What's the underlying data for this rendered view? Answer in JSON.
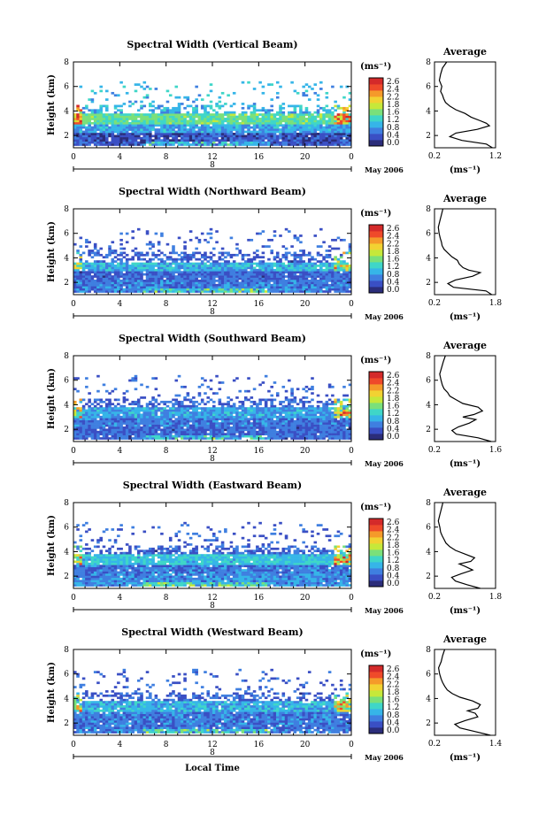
{
  "figure": {
    "xlabel": "Local Time",
    "date_label": "May 2006",
    "colorbar_unit": "(ms⁻¹)",
    "colorbar_ticks": [
      "2.6",
      "2.4",
      "2.2",
      "1.8",
      "1.6",
      "1.2",
      "0.8",
      "0.4",
      "0.0"
    ],
    "profile_title": "Average",
    "profile_xlabel": "(ms⁻¹)",
    "colormap": [
      "#2b2d7a",
      "#3a4fc4",
      "#3f7fe0",
      "#36b5e8",
      "#3fd6c8",
      "#7ae07a",
      "#c6e83a",
      "#f2d232",
      "#f59a2a",
      "#ef4a2a",
      "#d42a2a"
    ]
  },
  "chart_data": [
    {
      "type": "heatmap",
      "title": "Spectral Width (Vertical Beam)",
      "xlabel": "Local Time",
      "ylabel": "Height (km)",
      "x_ticks": [
        "0",
        "4",
        "8",
        "12",
        "16",
        "20",
        "0"
      ],
      "y_ticks": [
        "2",
        "4",
        "6",
        "8"
      ],
      "date_marker": "8",
      "date_label": "May 2006",
      "xlim": [
        0,
        24
      ],
      "ylim": [
        1,
        8
      ],
      "colorbar": {
        "unit": "(ms⁻¹)",
        "ticks": [
          "2.6",
          "2.4",
          "2.2",
          "1.8",
          "1.6",
          "1.2",
          "0.8",
          "0.4",
          "0.0"
        ],
        "range": [
          0,
          2.8
        ]
      },
      "layers": [
        {
          "height_km": [
            1.2,
            2.2
          ],
          "width_ms": 0.4
        },
        {
          "height_km": [
            2.2,
            3.0
          ],
          "width_ms": 0.8
        },
        {
          "height_km": [
            3.0,
            3.8
          ],
          "width_ms": 1.3
        },
        {
          "height_km": [
            3.8,
            6.5
          ],
          "width_ms": 0.9,
          "sparse": true
        }
      ],
      "profile": {
        "title": "Average",
        "xlabel": "(ms⁻¹)",
        "x_ticks": [
          "0.2",
          "1.2"
        ],
        "y_ticks": [
          "2",
          "4",
          "6",
          "8"
        ],
        "xlim": [
          0.2,
          1.2
        ],
        "ylim": [
          1,
          8
        ],
        "height": [
          1.0,
          1.3,
          1.6,
          1.9,
          2.2,
          2.5,
          2.8,
          3.0,
          3.2,
          3.5,
          3.8,
          4.1,
          4.4,
          4.7,
          5.0,
          5.3,
          5.6,
          6.0,
          6.5,
          7.0,
          7.5,
          8.0
        ],
        "width": [
          1.15,
          1.05,
          0.65,
          0.45,
          0.55,
          0.9,
          1.1,
          1.05,
          0.95,
          0.8,
          0.7,
          0.55,
          0.45,
          0.38,
          0.35,
          0.33,
          0.3,
          0.32,
          0.28,
          0.3,
          0.33,
          0.4
        ]
      }
    },
    {
      "type": "heatmap",
      "title": "Spectral Width (Northward Beam)",
      "xlabel": "Local Time",
      "ylabel": "Height (km)",
      "x_ticks": [
        "0",
        "4",
        "8",
        "12",
        "16",
        "20",
        "0"
      ],
      "y_ticks": [
        "2",
        "4",
        "6",
        "8"
      ],
      "date_marker": "8",
      "date_label": "May 2006",
      "xlim": [
        0,
        24
      ],
      "ylim": [
        1,
        8
      ],
      "colorbar": {
        "unit": "(ms⁻¹)",
        "ticks": [
          "2.6",
          "2.4",
          "2.2",
          "1.8",
          "1.6",
          "1.2",
          "0.8",
          "0.4",
          "0.0"
        ],
        "range": [
          0,
          2.8
        ]
      },
      "layers": [
        {
          "height_km": [
            1.2,
            2.2
          ],
          "width_ms": 0.6
        },
        {
          "height_km": [
            2.2,
            3.0
          ],
          "width_ms": 0.5
        },
        {
          "height_km": [
            3.0,
            3.6
          ],
          "width_ms": 0.9
        },
        {
          "height_km": [
            3.6,
            6.5
          ],
          "width_ms": 0.5,
          "sparse": true
        }
      ],
      "profile": {
        "title": "Average",
        "xlabel": "(ms⁻¹)",
        "x_ticks": [
          "0.2",
          "1.8"
        ],
        "y_ticks": [
          "2",
          "4",
          "6",
          "8"
        ],
        "xlim": [
          0.2,
          1.8
        ],
        "ylim": [
          1,
          8
        ],
        "height": [
          1.0,
          1.3,
          1.6,
          1.9,
          2.2,
          2.5,
          2.8,
          3.0,
          3.2,
          3.5,
          3.8,
          4.1,
          4.4,
          4.7,
          5.0,
          5.3,
          5.6,
          6.0,
          6.5,
          7.0,
          7.5,
          8.0
        ],
        "width": [
          1.7,
          1.55,
          0.7,
          0.55,
          0.75,
          1.2,
          1.4,
          1.1,
          0.95,
          0.85,
          0.8,
          0.65,
          0.55,
          0.45,
          0.4,
          0.38,
          0.35,
          0.32,
          0.3,
          0.34,
          0.38,
          0.42
        ]
      }
    },
    {
      "type": "heatmap",
      "title": "Spectral Width (Southward Beam)",
      "xlabel": "Local Time",
      "ylabel": "Height (km)",
      "x_ticks": [
        "0",
        "4",
        "8",
        "12",
        "16",
        "20",
        "0"
      ],
      "y_ticks": [
        "2",
        "4",
        "6",
        "8"
      ],
      "date_marker": "8",
      "date_label": "May 2006",
      "xlim": [
        0,
        24
      ],
      "ylim": [
        1,
        8
      ],
      "colorbar": {
        "unit": "(ms⁻¹)",
        "ticks": [
          "2.6",
          "2.4",
          "2.2",
          "1.8",
          "1.6",
          "1.2",
          "0.8",
          "0.4",
          "0.0"
        ],
        "range": [
          0,
          2.8
        ]
      },
      "layers": [
        {
          "height_km": [
            1.2,
            2.2
          ],
          "width_ms": 0.5
        },
        {
          "height_km": [
            2.2,
            3.0
          ],
          "width_ms": 0.6
        },
        {
          "height_km": [
            3.0,
            3.8
          ],
          "width_ms": 0.8
        },
        {
          "height_km": [
            3.8,
            6.5
          ],
          "width_ms": 0.5,
          "sparse": true
        }
      ],
      "profile": {
        "title": "Average",
        "xlabel": "(ms⁻¹)",
        "x_ticks": [
          "0.2",
          "1.6"
        ],
        "y_ticks": [
          "2",
          "4",
          "6",
          "8"
        ],
        "xlim": [
          0.2,
          1.6
        ],
        "ylim": [
          1,
          8
        ],
        "height": [
          1.0,
          1.3,
          1.6,
          1.9,
          2.2,
          2.5,
          2.8,
          3.0,
          3.2,
          3.5,
          3.8,
          4.1,
          4.4,
          4.7,
          5.0,
          5.3,
          5.6,
          6.0,
          6.5,
          7.0,
          7.5,
          8.0
        ],
        "width": [
          1.5,
          1.2,
          0.7,
          0.6,
          0.75,
          1.0,
          1.15,
          0.85,
          1.1,
          1.3,
          1.2,
          0.85,
          0.7,
          0.55,
          0.5,
          0.42,
          0.38,
          0.35,
          0.32,
          0.36,
          0.4,
          0.45
        ]
      }
    },
    {
      "type": "heatmap",
      "title": "Spectral Width (Eastward Beam)",
      "xlabel": "Local Time",
      "ylabel": "Height (km)",
      "x_ticks": [
        "0",
        "4",
        "8",
        "12",
        "16",
        "20",
        "0"
      ],
      "y_ticks": [
        "2",
        "4",
        "6",
        "8"
      ],
      "date_marker": "8",
      "date_label": "May 2006",
      "xlim": [
        0,
        24
      ],
      "ylim": [
        1,
        8
      ],
      "colorbar": {
        "unit": "(ms⁻¹)",
        "ticks": [
          "2.6",
          "2.4",
          "2.2",
          "1.8",
          "1.6",
          "1.2",
          "0.8",
          "0.4",
          "0.0"
        ],
        "range": [
          0,
          2.8
        ]
      },
      "layers": [
        {
          "height_km": [
            1.2,
            2.2
          ],
          "width_ms": 0.7
        },
        {
          "height_km": [
            2.2,
            3.0
          ],
          "width_ms": 0.6
        },
        {
          "height_km": [
            3.0,
            3.8
          ],
          "width_ms": 1.0
        },
        {
          "height_km": [
            3.8,
            6.5
          ],
          "width_ms": 0.5,
          "sparse": true
        }
      ],
      "profile": {
        "title": "Average",
        "xlabel": "(ms⁻¹)",
        "x_ticks": [
          "0.2",
          "1.8"
        ],
        "y_ticks": [
          "2",
          "4",
          "6",
          "8"
        ],
        "xlim": [
          0.2,
          1.8
        ],
        "ylim": [
          1,
          8
        ],
        "height": [
          1.0,
          1.3,
          1.6,
          1.9,
          2.2,
          2.5,
          2.8,
          3.0,
          3.2,
          3.5,
          3.8,
          4.1,
          4.4,
          4.7,
          5.0,
          5.3,
          5.6,
          6.0,
          6.5,
          7.0,
          7.5,
          8.0
        ],
        "width": [
          1.4,
          1.05,
          0.75,
          0.65,
          0.9,
          1.2,
          1.0,
          0.85,
          1.15,
          1.25,
          1.0,
          0.75,
          0.6,
          0.5,
          0.45,
          0.4,
          0.36,
          0.34,
          0.3,
          0.34,
          0.38,
          0.42
        ]
      }
    },
    {
      "type": "heatmap",
      "title": "Spectral Width (Westward Beam)",
      "xlabel": "Local Time",
      "ylabel": "Height (km)",
      "x_ticks": [
        "0",
        "4",
        "8",
        "12",
        "16",
        "20",
        "0"
      ],
      "y_ticks": [
        "2",
        "4",
        "6",
        "8"
      ],
      "date_marker": "8",
      "date_label": "May 2006",
      "xlim": [
        0,
        24
      ],
      "ylim": [
        1,
        8
      ],
      "colorbar": {
        "unit": "(ms⁻¹)",
        "ticks": [
          "2.6",
          "2.4",
          "2.2",
          "1.8",
          "1.6",
          "1.2",
          "0.8",
          "0.4",
          "0.0"
        ],
        "range": [
          0,
          2.8
        ]
      },
      "layers": [
        {
          "height_km": [
            1.2,
            2.2
          ],
          "width_ms": 0.6
        },
        {
          "height_km": [
            2.2,
            3.0
          ],
          "width_ms": 0.6
        },
        {
          "height_km": [
            3.0,
            3.8
          ],
          "width_ms": 0.9
        },
        {
          "height_km": [
            3.8,
            6.5
          ],
          "width_ms": 0.5,
          "sparse": true
        }
      ],
      "profile": {
        "title": "Average",
        "xlabel": "(ms⁻¹)",
        "x_ticks": [
          "0.2",
          "1.4"
        ],
        "y_ticks": [
          "2",
          "4",
          "6",
          "8"
        ],
        "xlim": [
          0.2,
          1.4
        ],
        "ylim": [
          1,
          8
        ],
        "height": [
          1.0,
          1.3,
          1.6,
          1.9,
          2.2,
          2.5,
          2.8,
          3.0,
          3.2,
          3.5,
          3.8,
          4.1,
          4.4,
          4.7,
          5.0,
          5.3,
          5.6,
          6.0,
          6.5,
          7.0,
          7.5,
          8.0
        ],
        "width": [
          1.3,
          1.0,
          0.7,
          0.6,
          0.8,
          1.05,
          1.0,
          0.85,
          1.05,
          1.1,
          0.95,
          0.7,
          0.55,
          0.45,
          0.4,
          0.36,
          0.33,
          0.3,
          0.28,
          0.33,
          0.36,
          0.4
        ]
      }
    }
  ]
}
